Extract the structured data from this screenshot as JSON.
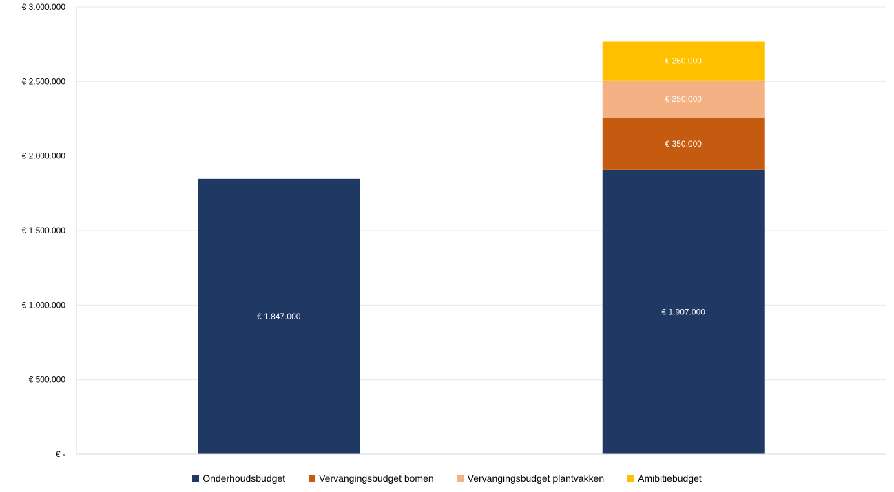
{
  "chart_data": {
    "type": "bar",
    "stacked": true,
    "categories": [
      "",
      ""
    ],
    "series": [
      {
        "name": "Onderhoudsbudget",
        "color": "#203864",
        "values": [
          1847000,
          1907000
        ],
        "labels": [
          "€ 1.847.000",
          "€ 1.907.000"
        ]
      },
      {
        "name": "Vervangingsbudget bomen",
        "color": "#C55A11",
        "values": [
          0,
          350000
        ],
        "labels": [
          "",
          "€ 350.000"
        ]
      },
      {
        "name": "Vervangingsbudget plantvakken",
        "color": "#F4B183",
        "values": [
          0,
          250000
        ],
        "labels": [
          "",
          "€ 250.000"
        ]
      },
      {
        "name": "Amibitiebudget",
        "color": "#FFC000",
        "values": [
          0,
          260000
        ],
        "labels": [
          "",
          "€ 260.000"
        ]
      }
    ],
    "ylim": [
      0,
      3000000
    ],
    "yticks": [
      0,
      500000,
      1000000,
      1500000,
      2000000,
      2500000,
      3000000
    ],
    "ytick_labels": [
      "€ -",
      "€ 500.000",
      "€ 1.000.000",
      "€ 1.500.000",
      "€ 2.000.000",
      "€ 2.500.000",
      "€ 3.000.000"
    ],
    "title": "",
    "xlabel": "",
    "ylabel": "",
    "grid": true,
    "legend_position": "bottom",
    "gridline_color": "#E8E8E8",
    "axis_color": "#D9D9D9",
    "label_color": "#FFFFFF"
  }
}
